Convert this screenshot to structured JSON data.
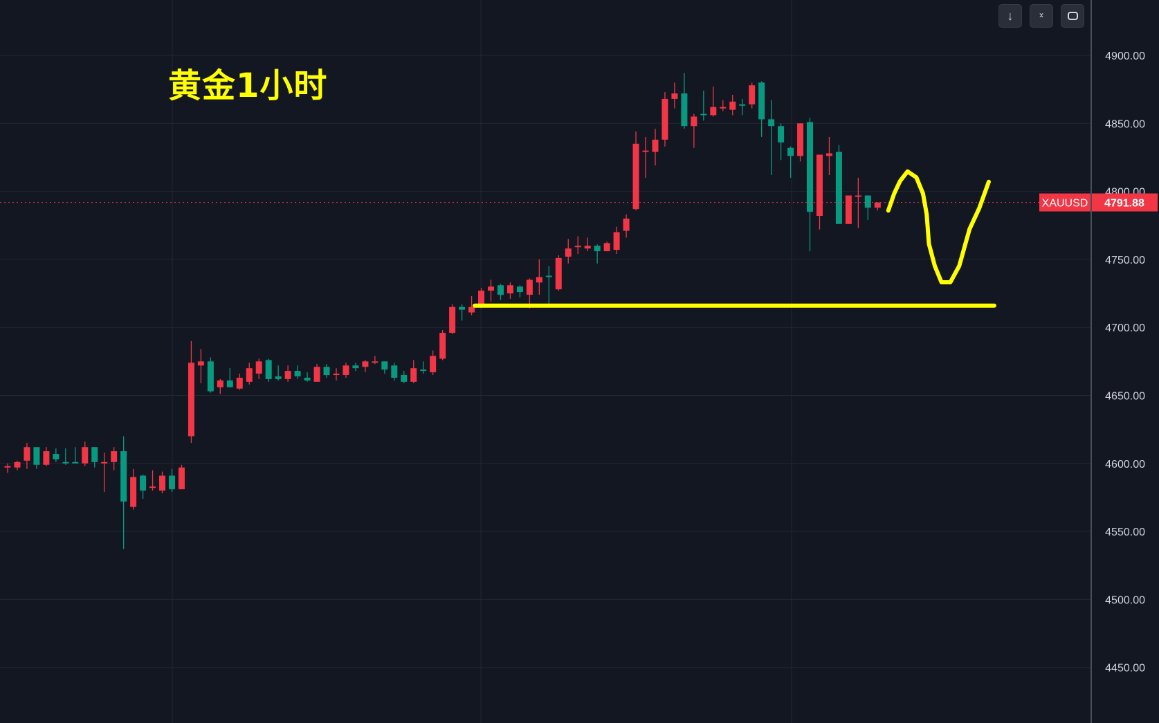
{
  "title": "黄金1小时",
  "toolbar": {
    "buttons": [
      {
        "icon": "arrow-down-icon",
        "glyph": "↓"
      },
      {
        "icon": "collapse-icon",
        "glyph": "⌄"
      },
      {
        "icon": "fullscreen-icon",
        "glyph": "▢"
      }
    ]
  },
  "chart_data": {
    "type": "candlestick",
    "symbol": "XAUUSD",
    "last_price": "4791.88",
    "last_price_value": 4791.88,
    "ylim": [
      4420,
      4930
    ],
    "yticks": [
      "4450.00",
      "4500.00",
      "4550.00",
      "4600.00",
      "4650.00",
      "4700.00",
      "4750.00",
      "4800.00",
      "4850.00",
      "4900.00"
    ],
    "grid": true,
    "colors": {
      "up": "#f23645",
      "down": "#089981",
      "annotation": "#ffff00",
      "background": "#131722"
    },
    "candles_ohlc": [
      [
        4597,
        4600,
        4593,
        4598
      ],
      [
        4597,
        4602,
        4595,
        4601
      ],
      [
        4602,
        4615,
        4596,
        4612
      ],
      [
        4612,
        4612,
        4596,
        4599
      ],
      [
        4599,
        4612,
        4598,
        4609
      ],
      [
        4607,
        4611,
        4601,
        4603
      ],
      [
        4601,
        4611,
        4599,
        4600
      ],
      [
        4601,
        4612,
        4600,
        4600
      ],
      [
        4600,
        4616,
        4598,
        4612
      ],
      [
        4612,
        4612,
        4597,
        4601
      ],
      [
        4600,
        4608,
        4579,
        4601
      ],
      [
        4601,
        4612,
        4595,
        4609
      ],
      [
        4609,
        4620,
        4537,
        4572
      ],
      [
        4568,
        4596,
        4566,
        4590
      ],
      [
        4591,
        4592,
        4574,
        4580
      ],
      [
        4582,
        4595,
        4580,
        4583
      ],
      [
        4580,
        4594,
        4578,
        4591
      ],
      [
        4591,
        4596,
        4579,
        4581
      ],
      [
        4581,
        4599,
        4581,
        4597
      ],
      [
        4620,
        4690,
        4615,
        4674
      ],
      [
        4672,
        4684,
        4659,
        4675
      ],
      [
        4675,
        4678,
        4652,
        4653
      ],
      [
        4656,
        4662,
        4651,
        4661
      ],
      [
        4661,
        4670,
        4656,
        4656
      ],
      [
        4655,
        4666,
        4654,
        4663
      ],
      [
        4660,
        4674,
        4658,
        4670
      ],
      [
        4666,
        4677,
        4662,
        4675
      ],
      [
        4676,
        4677,
        4660,
        4662
      ],
      [
        4664,
        4672,
        4661,
        4662
      ],
      [
        4662,
        4672,
        4660,
        4668
      ],
      [
        4668,
        4672,
        4662,
        4664
      ],
      [
        4663,
        4667,
        4660,
        4661
      ],
      [
        4660,
        4673,
        4660,
        4671
      ],
      [
        4671,
        4673,
        4663,
        4665
      ],
      [
        4665,
        4670,
        4661,
        4666
      ],
      [
        4665,
        4674,
        4663,
        4672
      ],
      [
        4672,
        4674,
        4668,
        4670
      ],
      [
        4671,
        4676,
        4667,
        4675
      ],
      [
        4674,
        4679,
        4673,
        4675
      ],
      [
        4675,
        4675,
        4666,
        4669
      ],
      [
        4672,
        4674,
        4661,
        4663
      ],
      [
        4665,
        4668,
        4659,
        4660
      ],
      [
        4660,
        4676,
        4659,
        4670
      ],
      [
        4669,
        4675,
        4666,
        4668
      ],
      [
        4667,
        4683,
        4665,
        4679
      ],
      [
        4677,
        4698,
        4676,
        4696
      ],
      [
        4696,
        4717,
        4695,
        4715
      ],
      [
        4715,
        4717,
        4705,
        4713
      ],
      [
        4711,
        4723,
        4709,
        4715
      ],
      [
        4717,
        4729,
        4714,
        4727
      ],
      [
        4727,
        4735,
        4719,
        4730
      ],
      [
        4731,
        4732,
        4720,
        4724
      ],
      [
        4725,
        4733,
        4721,
        4731
      ],
      [
        4730,
        4731,
        4722,
        4726
      ],
      [
        4724,
        4736,
        4714,
        4735
      ],
      [
        4733,
        4750,
        4724,
        4737
      ],
      [
        4738,
        4745,
        4716,
        4737
      ],
      [
        4728,
        4753,
        4727,
        4751
      ],
      [
        4752,
        4765,
        4747,
        4758
      ],
      [
        4759,
        4767,
        4754,
        4760
      ],
      [
        4758,
        4766,
        4756,
        4760
      ],
      [
        4760,
        4761,
        4747,
        4756
      ],
      [
        4756,
        4763,
        4756,
        4762
      ],
      [
        4757,
        4774,
        4754,
        4770
      ],
      [
        4771,
        4783,
        4766,
        4780
      ],
      [
        4787,
        4844,
        4786,
        4835
      ],
      [
        4829,
        4840,
        4810,
        4830
      ],
      [
        4829,
        4846,
        4819,
        4838
      ],
      [
        4838,
        4873,
        4833,
        4868
      ],
      [
        4868,
        4880,
        4861,
        4872
      ],
      [
        4872,
        4887,
        4846,
        4848
      ],
      [
        4848,
        4857,
        4832,
        4855
      ],
      [
        4857,
        4874,
        4852,
        4856
      ],
      [
        4856,
        4877,
        4855,
        4862
      ],
      [
        4861,
        4867,
        4859,
        4862
      ],
      [
        4860,
        4871,
        4856,
        4866
      ],
      [
        4864,
        4868,
        4856,
        4863
      ],
      [
        4864,
        4880,
        4861,
        4878
      ],
      [
        4880,
        4881,
        4840,
        4853
      ],
      [
        4853,
        4867,
        4812,
        4848
      ],
      [
        4848,
        4850,
        4823,
        4836
      ],
      [
        4832,
        4833,
        4810,
        4826
      ],
      [
        4826,
        4850,
        4822,
        4850
      ],
      [
        4851,
        4854,
        4756,
        4785
      ],
      [
        4782,
        4827,
        4772,
        4827
      ],
      [
        4826,
        4840,
        4812,
        4828
      ],
      [
        4829,
        4834,
        4776,
        4776
      ],
      [
        4776,
        4797,
        4776,
        4797
      ],
      [
        4796,
        4810,
        4773,
        4797
      ],
      [
        4797,
        4797,
        4779,
        4788
      ],
      [
        4788,
        4791.88,
        4786,
        4791.88
      ]
    ],
    "annotations": {
      "support_line_price": 4716
    }
  }
}
